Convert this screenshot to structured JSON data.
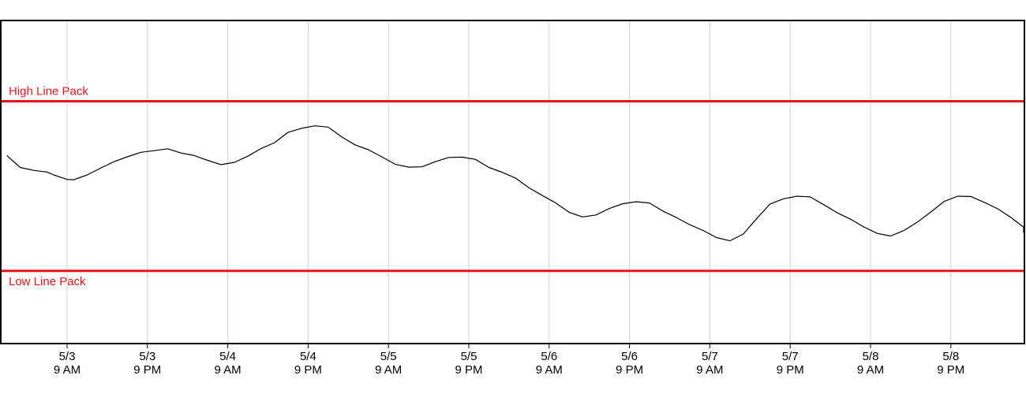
{
  "chart_data": {
    "type": "line",
    "title": "",
    "xlabel": "",
    "ylabel": "",
    "grid": "vertical",
    "x_ticks": [
      {
        "date": "5/3",
        "time": "9 AM"
      },
      {
        "date": "5/3",
        "time": "9 PM"
      },
      {
        "date": "5/4",
        "time": "9 AM"
      },
      {
        "date": "5/4",
        "time": "9 PM"
      },
      {
        "date": "5/5",
        "time": "9 AM"
      },
      {
        "date": "5/5",
        "time": "9 PM"
      },
      {
        "date": "5/6",
        "time": "9 AM"
      },
      {
        "date": "5/6",
        "time": "9 PM"
      },
      {
        "date": "5/7",
        "time": "9 AM"
      },
      {
        "date": "5/7",
        "time": "9 PM"
      },
      {
        "date": "5/8",
        "time": "9 AM"
      },
      {
        "date": "5/8",
        "time": "9 PM"
      }
    ],
    "reference_lines": [
      {
        "label": "High Line Pack",
        "value": 0.75,
        "color": "#e8141b"
      },
      {
        "label": "Low Line Pack",
        "value": 0.225,
        "color": "#e8141b"
      }
    ],
    "ylim": [
      0,
      1
    ],
    "series": [
      {
        "color": "#000000",
        "points": [
          [
            0,
            0.582
          ],
          [
            2,
            0.545
          ],
          [
            4,
            0.536
          ],
          [
            6,
            0.531
          ],
          [
            7,
            0.522
          ],
          [
            8,
            0.515
          ],
          [
            9,
            0.508
          ],
          [
            10,
            0.507
          ],
          [
            12,
            0.522
          ],
          [
            14,
            0.543
          ],
          [
            16,
            0.563
          ],
          [
            18,
            0.578
          ],
          [
            20,
            0.592
          ],
          [
            22,
            0.597
          ],
          [
            24,
            0.603
          ],
          [
            26,
            0.59
          ],
          [
            28,
            0.582
          ],
          [
            30,
            0.567
          ],
          [
            32,
            0.554
          ],
          [
            34,
            0.561
          ],
          [
            36,
            0.58
          ],
          [
            38,
            0.604
          ],
          [
            40,
            0.622
          ],
          [
            42,
            0.654
          ],
          [
            44,
            0.666
          ],
          [
            46,
            0.674
          ],
          [
            48,
            0.67
          ],
          [
            50,
            0.64
          ],
          [
            52,
            0.615
          ],
          [
            54,
            0.6
          ],
          [
            56,
            0.578
          ],
          [
            58,
            0.555
          ],
          [
            60,
            0.546
          ],
          [
            62,
            0.547
          ],
          [
            64,
            0.563
          ],
          [
            66,
            0.576
          ],
          [
            68,
            0.577
          ],
          [
            70,
            0.57
          ],
          [
            72,
            0.545
          ],
          [
            74,
            0.53
          ],
          [
            76,
            0.512
          ],
          [
            78,
            0.482
          ],
          [
            80,
            0.458
          ],
          [
            82,
            0.435
          ],
          [
            84,
            0.406
          ],
          [
            86,
            0.392
          ],
          [
            88,
            0.398
          ],
          [
            90,
            0.418
          ],
          [
            92,
            0.433
          ],
          [
            94,
            0.439
          ],
          [
            96,
            0.435
          ],
          [
            98,
            0.41
          ],
          [
            100,
            0.39
          ],
          [
            102,
            0.368
          ],
          [
            104,
            0.35
          ],
          [
            106,
            0.328
          ],
          [
            108,
            0.318
          ],
          [
            110,
            0.339
          ],
          [
            112,
            0.387
          ],
          [
            114,
            0.432
          ],
          [
            116,
            0.448
          ],
          [
            118,
            0.456
          ],
          [
            120,
            0.454
          ],
          [
            122,
            0.43
          ],
          [
            124,
            0.405
          ],
          [
            126,
            0.385
          ],
          [
            128,
            0.361
          ],
          [
            130,
            0.341
          ],
          [
            132,
            0.333
          ],
          [
            134,
            0.35
          ],
          [
            136,
            0.376
          ],
          [
            138,
            0.407
          ],
          [
            140,
            0.44
          ],
          [
            142,
            0.456
          ],
          [
            144,
            0.455
          ],
          [
            146,
            0.437
          ],
          [
            148,
            0.417
          ],
          [
            150,
            0.39
          ],
          [
            152,
            0.36
          ],
          [
            153.2,
            0.343
          ]
        ]
      }
    ]
  }
}
